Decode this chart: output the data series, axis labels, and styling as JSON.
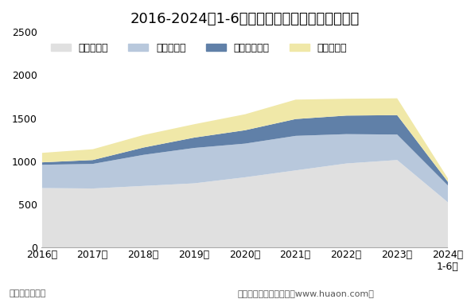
{
  "title": "2016-2024年1-6月甘肃省各发电类型发电量统计",
  "xlabel_bottom": "单位：亿千瓦时",
  "xlabel_right": "制图：华经产业研究院（www.huaon.com）",
  "years": [
    "2016年",
    "2017年",
    "2018年",
    "2019年",
    "2020年",
    "2021年",
    "2022年",
    "2023年",
    "2024年\n1-6月"
  ],
  "series": {
    "火力发电量": [
      695,
      690,
      720,
      750,
      820,
      900,
      980,
      1020,
      530
    ],
    "水力发电量": [
      270,
      285,
      360,
      410,
      390,
      400,
      340,
      295,
      195
    ],
    "太阳能发电量": [
      28,
      45,
      85,
      120,
      155,
      195,
      215,
      225,
      42
    ],
    "风力发电量": [
      110,
      125,
      145,
      155,
      185,
      225,
      195,
      195,
      40
    ]
  },
  "colors": {
    "火力发电量": "#e0e0e0",
    "水力发电量": "#b8c8dc",
    "太阳能发电量": "#6080a8",
    "风力发电量": "#f0e8a8"
  },
  "ylim": [
    0,
    2500
  ],
  "yticks": [
    0,
    500,
    1000,
    1500,
    2000,
    2500
  ],
  "background_color": "#ffffff",
  "title_fontsize": 13,
  "legend_fontsize": 9,
  "tick_fontsize": 9,
  "footer_fontsize": 8
}
